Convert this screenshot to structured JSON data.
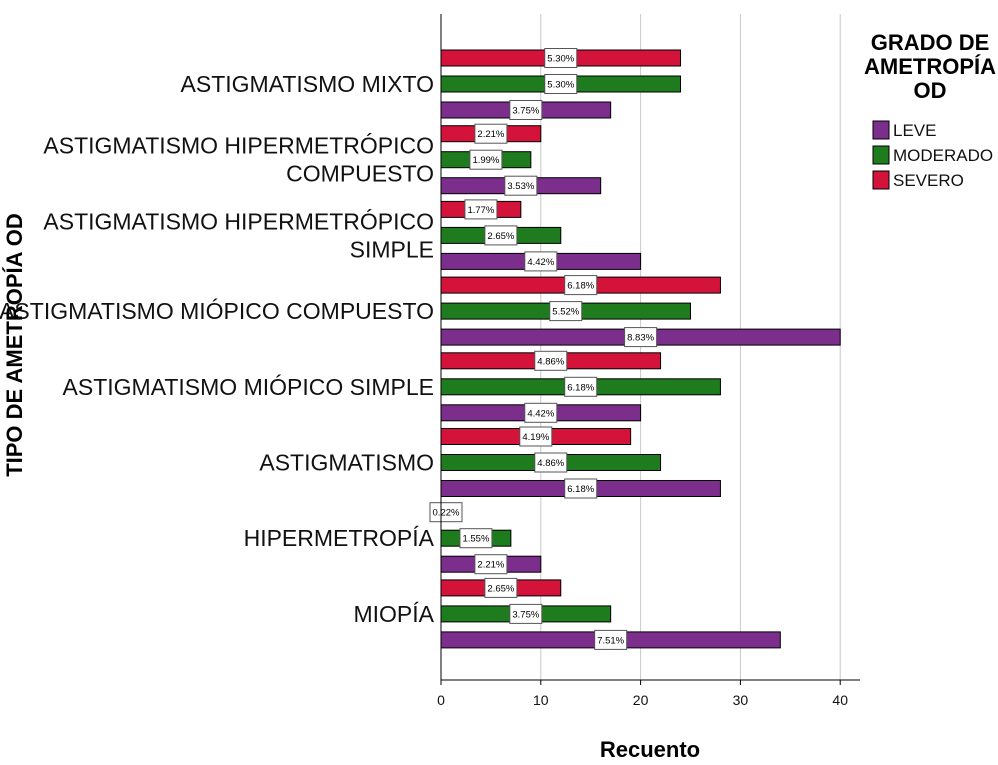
{
  "chart_data": {
    "type": "bar",
    "orientation": "horizontal",
    "title": "",
    "xlabel": "Recuento",
    "ylabel": "TIPO DE AMETROPÍA OD",
    "xlim": [
      0,
      42
    ],
    "xticks": [
      0,
      10,
      20,
      30,
      40
    ],
    "grid": "vertical",
    "legend_title": "GRADO DE AMETROPÍA OD",
    "legend_position": "right",
    "categories": [
      "ASTIGMATISMO MIXTO",
      "ASTIGMATISMO HIPERMETRÓPICO COMPUESTO",
      "ASTIGMATISMO HIPERMETRÓPICO SIMPLE",
      "ASTIGMATISMO MIÓPICO COMPUESTO",
      "ASTIGMATISMO MIÓPICO SIMPLE",
      "ASTIGMATISMO",
      "HIPERMETROPÍA",
      "MIOPÍA"
    ],
    "series": [
      {
        "name": "LEVE",
        "color": "#7b2e8c",
        "values": [
          17,
          16,
          20,
          40,
          20,
          28,
          10,
          34
        ],
        "labels": [
          "3.75%",
          "3.53%",
          "4.42%",
          "8.83%",
          "4.42%",
          "6.18%",
          "2.21%",
          "7.51%"
        ]
      },
      {
        "name": "MODERADO",
        "color": "#1e7b1e",
        "values": [
          24,
          9,
          12,
          25,
          28,
          22,
          7,
          17
        ],
        "labels": [
          "5.30%",
          "1.99%",
          "2.65%",
          "5.52%",
          "6.18%",
          "4.86%",
          "1.55%",
          "3.75%"
        ]
      },
      {
        "name": "SEVERO",
        "color": "#d4133b",
        "values": [
          24,
          10,
          8,
          28,
          22,
          19,
          1,
          12
        ],
        "labels": [
          "5.30%",
          "2.21%",
          "1.77%",
          "6.18%",
          "4.86%",
          "4.19%",
          "0.22%",
          "2.65%"
        ]
      }
    ]
  },
  "legend": {
    "title_lines": [
      "GRADO DE",
      "AMETROPÍA",
      "OD"
    ]
  },
  "category_label_lines": [
    [
      "ASTIGMATISMO MIXTO"
    ],
    [
      "ASTIGMATISMO HIPERMETRÓPICO",
      "COMPUESTO"
    ],
    [
      "ASTIGMATISMO HIPERMETRÓPICO",
      "SIMPLE"
    ],
    [
      "ASTIGMATISMO MIÓPICO COMPUESTO"
    ],
    [
      "ASTIGMATISMO MIÓPICO SIMPLE"
    ],
    [
      "ASTIGMATISMO"
    ],
    [
      "HIPERMETROPÍA"
    ],
    [
      "MIOPÍA"
    ]
  ]
}
